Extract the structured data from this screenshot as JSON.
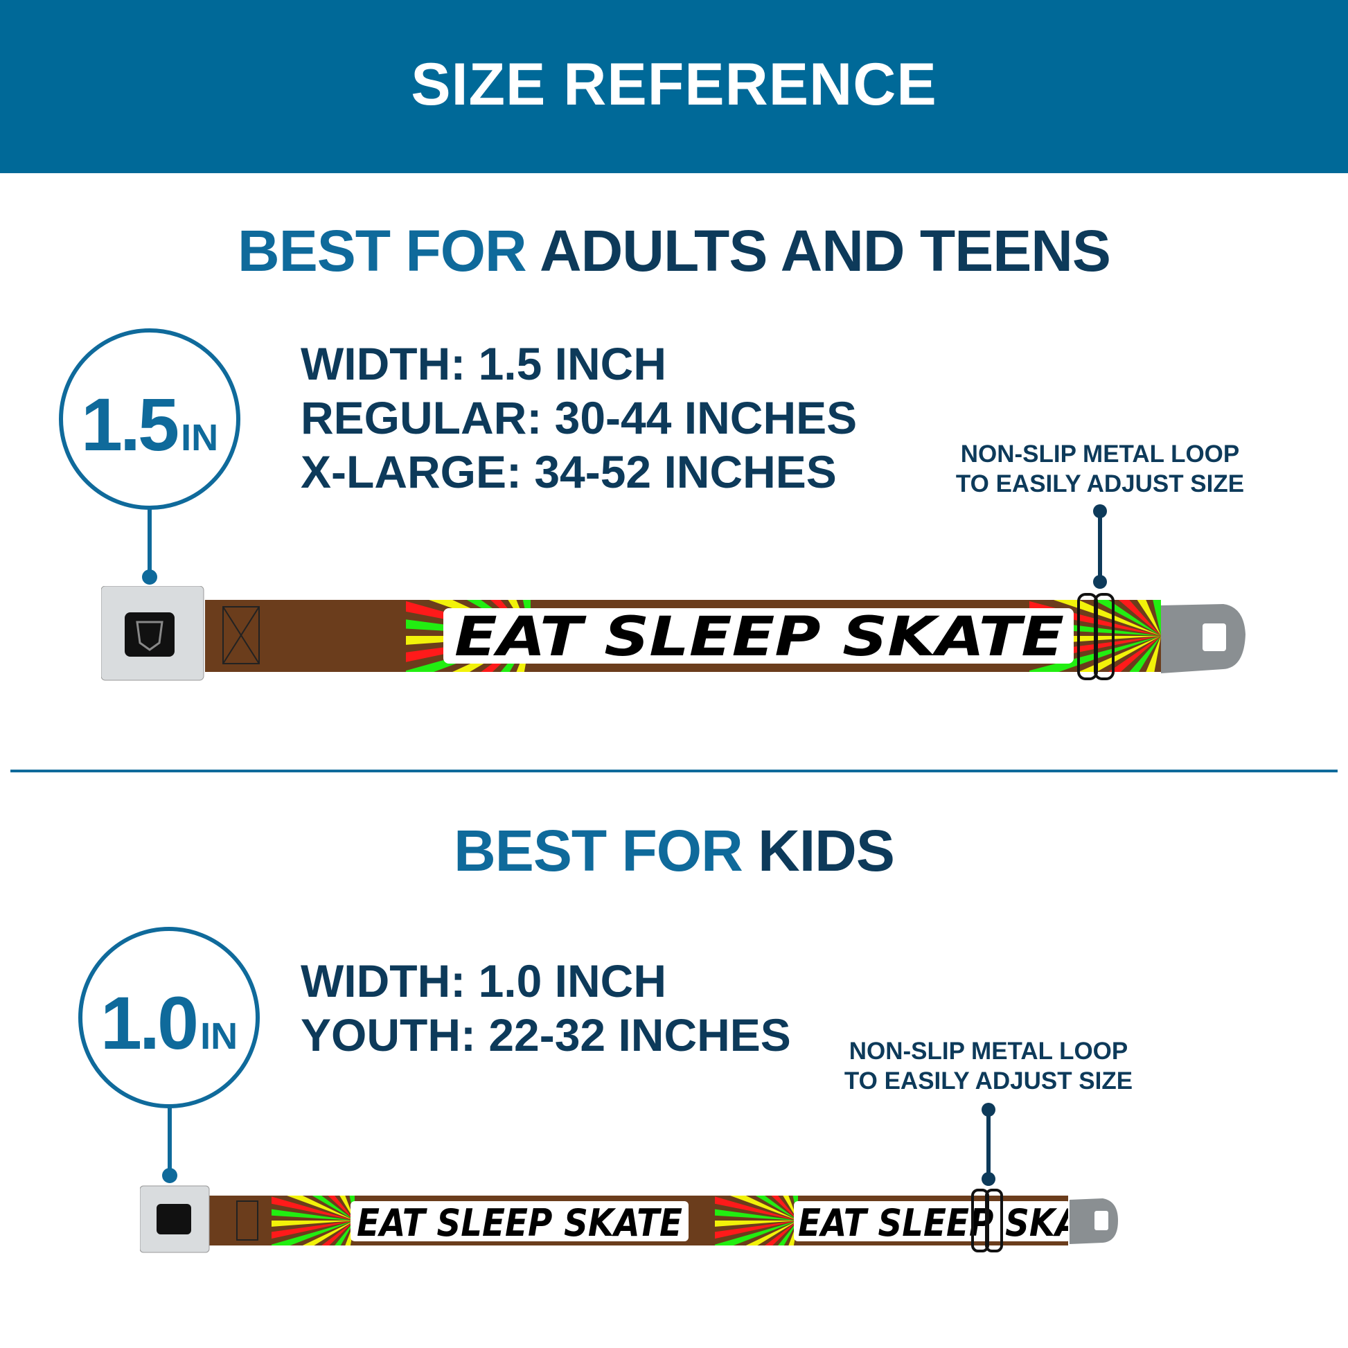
{
  "header": {
    "title": "SIZE REFERENCE",
    "background": "#006998"
  },
  "adults": {
    "heading_prefix": "BEST FOR",
    "heading_main": "ADULTS AND TEENS",
    "badge_value": "1.5",
    "badge_unit": "IN",
    "specs": [
      "WIDTH: 1.5 INCH",
      "REGULAR: 30-44 INCHES",
      "X-LARGE: 34-52 INCHES"
    ],
    "note_lines": [
      "NON-SLIP METAL LOOP",
      "TO EASILY ADJUST SIZE"
    ],
    "belt_print": "EAT SLEEP SKATE"
  },
  "kids": {
    "heading_prefix": "BEST FOR",
    "heading_main": "KIDS",
    "badge_value": "1.0",
    "badge_unit": "IN",
    "specs": [
      "WIDTH: 1.0 INCH",
      "YOUTH: 22-32 INCHES"
    ],
    "note_lines": [
      "NON-SLIP METAL LOOP",
      "TO EASILY ADJUST SIZE"
    ],
    "belt_print": "EAT SLEEP SKATE"
  },
  "colors": {
    "accent": "#0f6a9b",
    "navy": "#0d3a5a",
    "strap": "#6b3d1c",
    "ray_red": "#ff1a1a",
    "ray_yellow": "#f2f20a",
    "ray_green": "#22ee11"
  }
}
